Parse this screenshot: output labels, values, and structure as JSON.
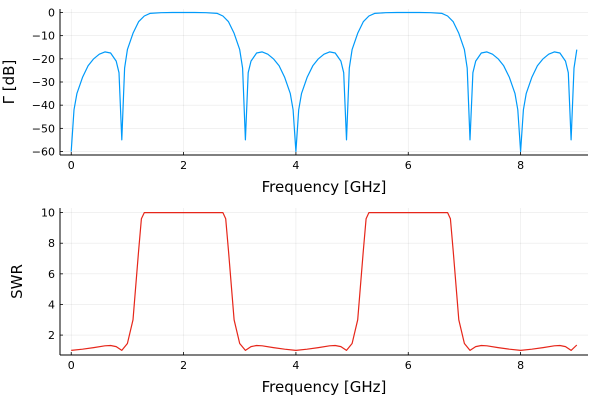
{
  "chart_data": [
    {
      "type": "line",
      "xlabel": "Frequency [GHz]",
      "ylabel": "Γ [dB]",
      "xlim": [
        -0.2,
        9.2
      ],
      "ylim": [
        -61.5,
        1.5
      ],
      "xticks": [
        0,
        2,
        4,
        6,
        8
      ],
      "yticks": [
        0,
        -10,
        -20,
        -30,
        -40,
        -50,
        -60
      ],
      "grid": true,
      "legend": "none",
      "color": "#009AFA",
      "series": [
        {
          "x": [
            0.0,
            0.05,
            0.1,
            0.2,
            0.3,
            0.4,
            0.5,
            0.6,
            0.7,
            0.8,
            0.85,
            0.9,
            0.95,
            1.0,
            1.1,
            1.2,
            1.3,
            1.4,
            1.6,
            1.8,
            2.0,
            2.2,
            2.4,
            2.6,
            2.7,
            2.8,
            2.9,
            3.0,
            3.05,
            3.1,
            3.15,
            3.2,
            3.3,
            3.4,
            3.5,
            3.6,
            3.7,
            3.8,
            3.9,
            3.95,
            4.0,
            4.05,
            4.1,
            4.2,
            4.3,
            4.4,
            4.5,
            4.6,
            4.7,
            4.8,
            4.85,
            4.9,
            4.95,
            5.0,
            5.1,
            5.2,
            5.3,
            5.4,
            5.6,
            5.8,
            6.0,
            6.2,
            6.4,
            6.6,
            6.7,
            6.8,
            6.9,
            7.0,
            7.05,
            7.1,
            7.15,
            7.2,
            7.3,
            7.4,
            7.5,
            7.6,
            7.7,
            7.8,
            7.9,
            7.95,
            8.0,
            8.05,
            8.1,
            8.2,
            8.3,
            8.4,
            8.5,
            8.6,
            8.7,
            8.8,
            8.85,
            8.9,
            8.95,
            9.0
          ],
          "values": [
            -60,
            -42,
            -35,
            -28,
            -23,
            -20,
            -18,
            -17,
            -17.5,
            -21,
            -26,
            -55,
            -24,
            -16,
            -9,
            -4,
            -1.5,
            -0.4,
            -0.1,
            0,
            0,
            0,
            -0.1,
            -0.4,
            -1.5,
            -4,
            -9,
            -16,
            -24,
            -55,
            -26,
            -21,
            -17.5,
            -17,
            -18,
            -20,
            -23,
            -28,
            -35,
            -42,
            -60,
            -42,
            -35,
            -28,
            -23,
            -20,
            -18,
            -17,
            -17.5,
            -21,
            -26,
            -55,
            -24,
            -16,
            -9,
            -4,
            -1.5,
            -0.4,
            -0.1,
            0,
            0,
            0,
            -0.1,
            -0.4,
            -1.5,
            -4,
            -9,
            -16,
            -24,
            -55,
            -26,
            -21,
            -17.5,
            -17,
            -18,
            -20,
            -23,
            -28,
            -35,
            -42,
            -60,
            -42,
            -35,
            -28,
            -23,
            -20,
            -18,
            -17,
            -17.5,
            -21,
            -26,
            -55,
            -24,
            -16
          ]
        }
      ]
    },
    {
      "type": "line",
      "xlabel": "Frequency [GHz]",
      "ylabel": "SWR",
      "xlim": [
        -0.2,
        9.2
      ],
      "ylim": [
        0.7,
        10.3
      ],
      "xticks": [
        0,
        2,
        4,
        6,
        8
      ],
      "yticks": [
        2,
        4,
        6,
        8,
        10
      ],
      "grid": true,
      "legend": "none",
      "color": "#E6261A",
      "series": [
        {
          "x": [
            0.0,
            0.2,
            0.4,
            0.6,
            0.7,
            0.8,
            0.9,
            1.0,
            1.1,
            1.2,
            1.25,
            1.3,
            1.6,
            2.0,
            2.4,
            2.7,
            2.75,
            2.8,
            2.9,
            3.0,
            3.1,
            3.2,
            3.3,
            3.4,
            3.6,
            3.8,
            4.0,
            4.2,
            4.4,
            4.6,
            4.7,
            4.8,
            4.9,
            5.0,
            5.1,
            5.2,
            5.25,
            5.3,
            5.6,
            6.0,
            6.4,
            6.7,
            6.75,
            6.8,
            6.9,
            7.0,
            7.1,
            7.2,
            7.3,
            7.4,
            7.6,
            7.8,
            8.0,
            8.2,
            8.4,
            8.6,
            8.7,
            8.8,
            8.9,
            9.0
          ],
          "values": [
            1.0,
            1.08,
            1.18,
            1.3,
            1.32,
            1.25,
            1.0,
            1.45,
            3.0,
            7.5,
            9.6,
            10,
            10,
            10,
            10,
            10,
            9.6,
            7.5,
            3.0,
            1.45,
            1.0,
            1.25,
            1.32,
            1.3,
            1.18,
            1.08,
            1.0,
            1.08,
            1.18,
            1.3,
            1.32,
            1.25,
            1.0,
            1.45,
            3.0,
            7.5,
            9.6,
            10,
            10,
            10,
            10,
            10,
            9.6,
            7.5,
            3.0,
            1.45,
            1.0,
            1.25,
            1.32,
            1.3,
            1.18,
            1.08,
            1.0,
            1.08,
            1.18,
            1.3,
            1.32,
            1.25,
            1.0,
            1.35
          ]
        }
      ]
    }
  ]
}
